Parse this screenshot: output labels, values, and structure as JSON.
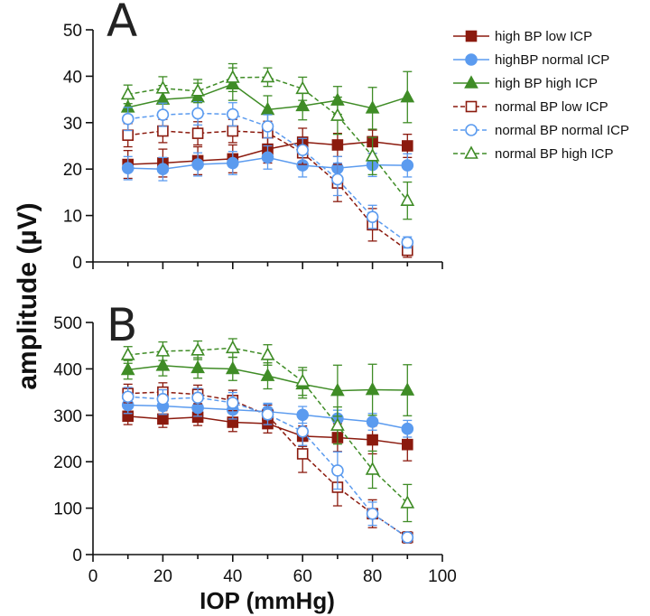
{
  "chart_data": {
    "type": "line",
    "ylabel": "amplitude (µV)",
    "xlabel": "IOP (mmHg)",
    "x": [
      10,
      20,
      30,
      40,
      50,
      60,
      70,
      80,
      90
    ],
    "xlim": [
      0,
      100
    ],
    "xticks": [
      0,
      20,
      40,
      60,
      80,
      100
    ],
    "legend_position": "top-right",
    "legend": [
      {
        "name": "high BP low ICP",
        "color": "#8b1a0e",
        "marker": "square",
        "filled": true,
        "dashed": false
      },
      {
        "name": "highBP normal ICP",
        "color": "#5b9bef",
        "marker": "circle",
        "filled": true,
        "dashed": false
      },
      {
        "name": "high BP high ICP",
        "color": "#3f8c26",
        "marker": "triangle",
        "filled": true,
        "dashed": false
      },
      {
        "name": "normal BP low ICP",
        "color": "#8b1a0e",
        "marker": "square",
        "filled": false,
        "dashed": true
      },
      {
        "name": "normal BP normal ICP",
        "color": "#5b9bef",
        "marker": "circle",
        "filled": false,
        "dashed": true
      },
      {
        "name": "normal BP high ICP",
        "color": "#3f8c26",
        "marker": "triangle",
        "filled": false,
        "dashed": true
      }
    ],
    "panels": [
      {
        "label": "A",
        "ylim": [
          0,
          50
        ],
        "yticks": [
          0,
          10,
          20,
          30,
          40,
          50
        ],
        "series": [
          {
            "name": "high BP low ICP",
            "values": [
              21,
              21.3,
              21.8,
              22.2,
              24.3,
              25.8,
              25.2,
              25.9,
              25.0
            ],
            "errors": [
              3,
              3,
              3,
              3,
              3,
              3,
              2.5,
              2.5,
              2.5
            ]
          },
          {
            "name": "highBP normal ICP",
            "values": [
              20.2,
              20,
              21,
              21.3,
              22.5,
              20.8,
              20.2,
              20.9,
              20.8
            ],
            "errors": [
              2.5,
              2.5,
              2.5,
              2.5,
              2.5,
              2.5,
              2.5,
              2.5,
              2.5
            ]
          },
          {
            "name": "high BP high ICP",
            "values": [
              33.3,
              35,
              35.5,
              38.3,
              32.8,
              33.6,
              34.8,
              33.1,
              35.5
            ],
            "errors": [
              2.5,
              3,
              3,
              3.5,
              3,
              3,
              3,
              4.5,
              5.5
            ]
          },
          {
            "name": "normal BP low ICP",
            "values": [
              27.3,
              28.2,
              27.7,
              28.2,
              27.8,
              23.5,
              17,
              8,
              2.5
            ],
            "errors": [
              2.5,
              2.5,
              2.5,
              2.5,
              2.5,
              2.5,
              4,
              3.5,
              1.5
            ]
          },
          {
            "name": "normal BP normal ICP",
            "values": [
              30.8,
              31.7,
              32,
              31.8,
              29.2,
              24.1,
              17.8,
              9.7,
              4.2
            ],
            "errors": [
              2.5,
              2.5,
              2.5,
              2.5,
              2.5,
              2.5,
              3.5,
              2.5,
              1.2
            ]
          },
          {
            "name": "normal BP high ICP",
            "values": [
              36.1,
              37.4,
              36.8,
              39.7,
              39.8,
              37.3,
              31.5,
              22.8,
              13.2
            ],
            "errors": [
              2,
              2.5,
              2.5,
              3,
              2,
              2.5,
              4,
              4,
              4
            ]
          }
        ]
      },
      {
        "label": "B",
        "ylim": [
          0,
          500
        ],
        "yticks": [
          0,
          100,
          200,
          300,
          400,
          500
        ],
        "series": [
          {
            "name": "high BP low ICP",
            "values": [
              298,
              292,
              296,
              285,
              282,
              255,
              252,
              247,
              237
            ],
            "errors": [
              18,
              18,
              18,
              20,
              20,
              22,
              30,
              30,
              35
            ]
          },
          {
            "name": "highBP normal ICP",
            "values": [
              322,
              320,
              316,
              312,
              308,
              301,
              293,
              286,
              271
            ],
            "errors": [
              18,
              18,
              18,
              20,
              18,
              18,
              18,
              18,
              18
            ]
          },
          {
            "name": "high BP high ICP",
            "values": [
              398,
              407,
              402,
              400,
              385,
              367,
              353,
              355,
              354
            ],
            "errors": [
              20,
              22,
              22,
              25,
              28,
              30,
              55,
              55,
              55
            ]
          },
          {
            "name": "normal BP low ICP",
            "values": [
              347,
              350,
              345,
              332,
              300,
              217,
              145,
              88,
              37
            ],
            "errors": [
              20,
              20,
              20,
              22,
              22,
              40,
              40,
              30,
              12
            ]
          },
          {
            "name": "normal BP normal ICP",
            "values": [
              340,
              335,
              338,
              327,
              302,
              265,
              181,
              88,
              37
            ],
            "errors": [
              20,
              20,
              20,
              22,
              22,
              30,
              40,
              25,
              10
            ]
          },
          {
            "name": "normal BP high ICP",
            "values": [
              430,
              438,
              440,
              445,
              430,
              373,
              278,
              183,
              111
            ],
            "errors": [
              18,
              20,
              20,
              20,
              22,
              30,
              40,
              40,
              40
            ]
          }
        ]
      }
    ]
  }
}
